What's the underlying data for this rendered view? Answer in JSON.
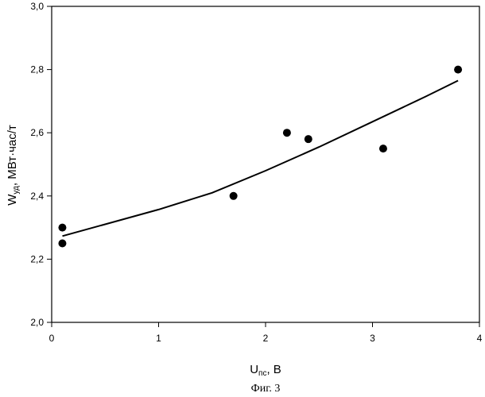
{
  "chart_data": {
    "type": "scatter",
    "xlabel": {
      "main": "U",
      "sub": "пс",
      "rest": ", В"
    },
    "ylabel": {
      "main": "W",
      "sub": "уд",
      "rest": ", МВт·час/т"
    },
    "xlim": [
      0,
      4
    ],
    "ylim": [
      2.0,
      3.0
    ],
    "x_ticks": [
      0,
      1,
      2,
      3,
      4
    ],
    "x_tick_labels": [
      "0",
      "1",
      "2",
      "3",
      "4"
    ],
    "y_ticks": [
      2.0,
      2.2,
      2.4,
      2.6,
      2.8,
      3.0
    ],
    "y_tick_labels": [
      "2,0",
      "2,2",
      "2,4",
      "2,6",
      "2,8",
      "3,0"
    ],
    "grid": false,
    "points": [
      {
        "x": 0.1,
        "y": 2.3
      },
      {
        "x": 0.1,
        "y": 2.25
      },
      {
        "x": 1.7,
        "y": 2.4
      },
      {
        "x": 2.2,
        "y": 2.6
      },
      {
        "x": 2.4,
        "y": 2.58
      },
      {
        "x": 3.1,
        "y": 2.55
      },
      {
        "x": 3.8,
        "y": 2.8
      }
    ],
    "fit_curve": [
      {
        "x": 0.1,
        "y": 2.273
      },
      {
        "x": 1.0,
        "y": 2.357
      },
      {
        "x": 1.5,
        "y": 2.41
      },
      {
        "x": 2.0,
        "y": 2.48
      },
      {
        "x": 2.5,
        "y": 2.555
      },
      {
        "x": 3.0,
        "y": 2.635
      },
      {
        "x": 3.5,
        "y": 2.715
      },
      {
        "x": 3.8,
        "y": 2.765
      }
    ]
  },
  "caption": "Фиг. 3"
}
